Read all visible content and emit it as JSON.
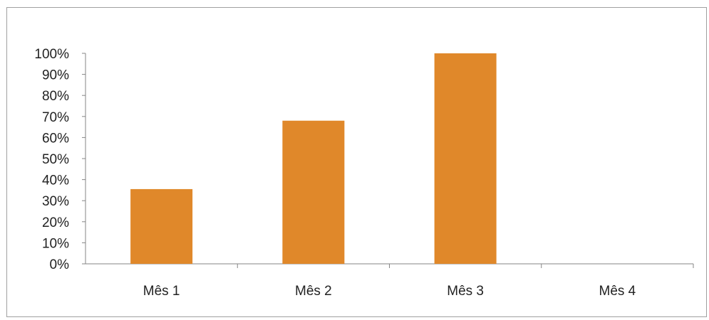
{
  "chart_data": {
    "type": "bar",
    "title": "",
    "xlabel": "",
    "ylabel": "",
    "categories": [
      "Mês 1",
      "Mês 2",
      "Mês 3",
      "Mês 4"
    ],
    "values": [
      0.355,
      0.68,
      1.0,
      0.0
    ],
    "yticks": [
      "0%",
      "10%",
      "20%",
      "30%",
      "40%",
      "50%",
      "60%",
      "70%",
      "80%",
      "90%",
      "100%"
    ],
    "ylim": [
      0,
      1
    ],
    "grid": false,
    "legend": "none",
    "bar_color": "#E0882A",
    "axis_color": "#868686"
  }
}
